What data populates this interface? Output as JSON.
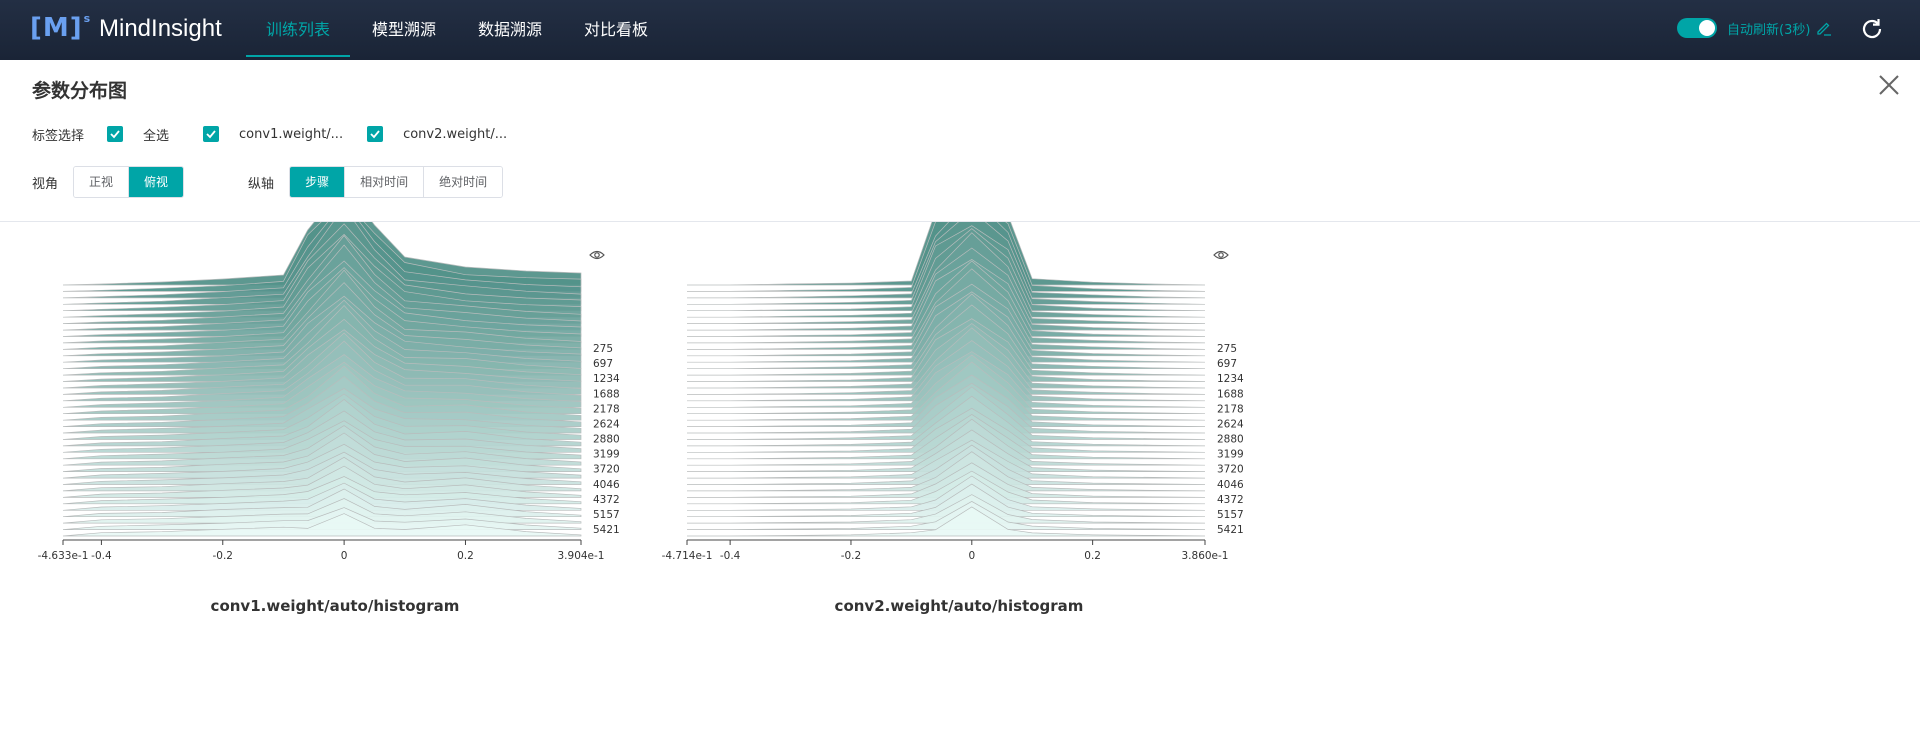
{
  "header": {
    "logo_mark": "[M]",
    "logo_sup": "s",
    "app_name": "MindInsight",
    "nav": [
      {
        "label": "训练列表",
        "active": true
      },
      {
        "label": "模型溯源",
        "active": false
      },
      {
        "label": "数据溯源",
        "active": false
      },
      {
        "label": "对比看板",
        "active": false
      }
    ],
    "auto_refresh_label": "自动刷新(3秒)",
    "auto_refresh_on": true
  },
  "page": {
    "title": "参数分布图",
    "tag_select_label": "标签选择",
    "tags": [
      {
        "label": "全选",
        "checked": true
      },
      {
        "label": "conv1.weight/...",
        "checked": true
      },
      {
        "label": "conv2.weight/...",
        "checked": true
      }
    ],
    "view_label": "视角",
    "view_options": [
      {
        "label": "正视",
        "active": false
      },
      {
        "label": "俯视",
        "active": true
      }
    ],
    "axis_label": "纵轴",
    "axis_options": [
      {
        "label": "步骤",
        "active": true
      },
      {
        "label": "相对时间",
        "active": false
      },
      {
        "label": "绝对时间",
        "active": false
      }
    ]
  },
  "colors": {
    "accent": "#00a5a7",
    "header_bg": "#1f2a3d",
    "ridge_fill_top": "#4f8f87",
    "ridge_fill_bottom": "#e8f8f5"
  },
  "chart_data": [
    {
      "type": "histogram-ridgeline",
      "title": "conv1.weight/auto/histogram",
      "x_range": [
        -0.4633,
        0.3904
      ],
      "x_tick_values": [
        -0.4633,
        -0.4,
        -0.2,
        0,
        0.2,
        0.3904
      ],
      "x_tick_labels": [
        "-4.633e-1",
        "-0.4",
        "-0.2",
        "0",
        "0.2",
        "3.904e-1"
      ],
      "step_labels": [
        "275",
        "697",
        "1234",
        "1688",
        "2178",
        "2624",
        "2880",
        "3199",
        "3720",
        "4046",
        "4372",
        "5157",
        "5421"
      ],
      "bins_x": [
        -0.4633,
        -0.4,
        -0.3,
        -0.2,
        -0.1,
        -0.06,
        0,
        0.05,
        0.1,
        0.2,
        0.3,
        0.3904
      ],
      "first_step_counts": [
        0,
        1,
        3,
        6,
        10,
        55,
        100,
        60,
        28,
        18,
        14,
        12
      ],
      "last_step_counts": [
        0,
        6,
        8,
        12,
        16,
        14,
        40,
        14,
        12,
        20,
        8,
        2
      ]
    },
    {
      "type": "histogram-ridgeline",
      "title": "conv2.weight/auto/histogram",
      "x_range": [
        -0.4714,
        0.386
      ],
      "x_tick_values": [
        -0.4714,
        -0.4,
        -0.2,
        0,
        0.2,
        0.386
      ],
      "x_tick_labels": [
        "-4.714e-1",
        "-0.4",
        "-0.2",
        "0",
        "0.2",
        "3.860e-1"
      ],
      "step_labels": [
        "275",
        "697",
        "1234",
        "1688",
        "2178",
        "2624",
        "2880",
        "3199",
        "3720",
        "4046",
        "4372",
        "5157",
        "5421"
      ],
      "bins_x": [
        -0.4714,
        -0.4,
        -0.3,
        -0.2,
        -0.1,
        -0.06,
        0,
        0.06,
        0.1,
        0.2,
        0.3,
        0.386
      ],
      "first_step_counts": [
        0,
        0,
        1,
        2,
        4,
        70,
        100,
        70,
        6,
        3,
        1,
        0
      ],
      "last_step_counts": [
        0,
        0,
        1,
        2,
        6,
        12,
        50,
        12,
        6,
        2,
        1,
        0
      ]
    }
  ]
}
